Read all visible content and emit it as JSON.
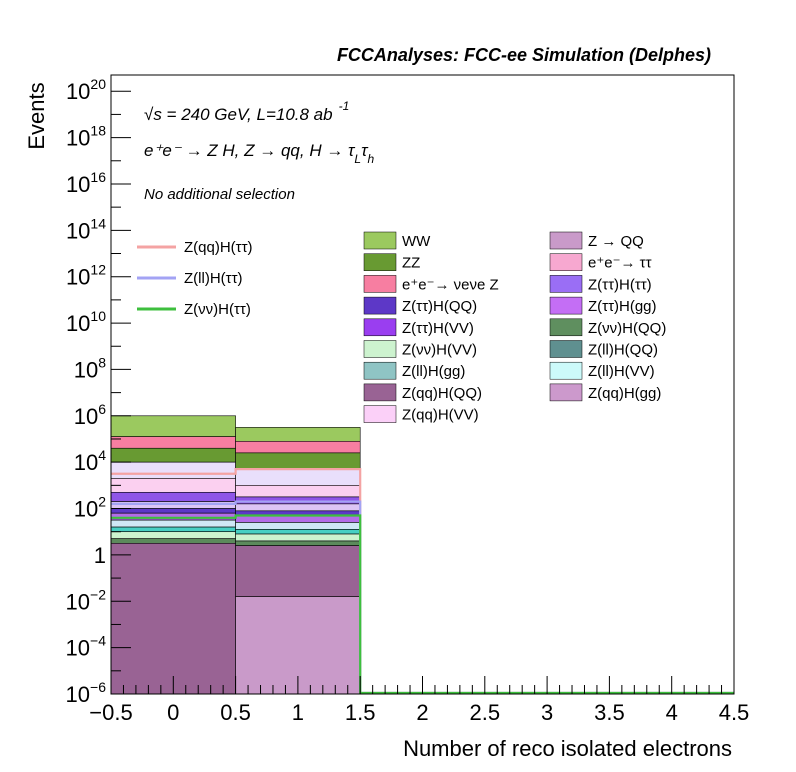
{
  "chart_data": {
    "type": "histogram-stacked",
    "header": "FCCAnalyses: FCC-ee Simulation (Delphes)",
    "xlabel": "Number of reco isolated electrons",
    "ylabel": "Events",
    "xlim": [
      -0.5,
      4.5
    ],
    "ylim_log10": [
      -6,
      20.7
    ],
    "log_y": true,
    "annotations": {
      "sqrt_s": "√s = 240 GeV, L=10.8 ab",
      "lumi_exp": "-1",
      "process_main": "e⁺e⁻ → Z H, Z → qq, H → τ",
      "process_sub1": "L",
      "process_mid": "τ",
      "process_sub2": "h",
      "selection": "No additional selection"
    },
    "x_ticks": [
      {
        "value": -0.5,
        "label": "−0.5"
      },
      {
        "value": 0,
        "label": "0"
      },
      {
        "value": 0.5,
        "label": "0.5"
      },
      {
        "value": 1,
        "label": "1"
      },
      {
        "value": 1.5,
        "label": "1.5"
      },
      {
        "value": 2,
        "label": "2"
      },
      {
        "value": 2.5,
        "label": "2.5"
      },
      {
        "value": 3,
        "label": "3"
      },
      {
        "value": 3.5,
        "label": "3.5"
      },
      {
        "value": 4,
        "label": "4"
      },
      {
        "value": 4.5,
        "label": "4.5"
      }
    ],
    "y_ticks": [
      {
        "exp": -6,
        "base": "10",
        "sup": "−6"
      },
      {
        "exp": -4,
        "base": "10",
        "sup": "−4"
      },
      {
        "exp": -2,
        "base": "10",
        "sup": "−2"
      },
      {
        "exp": 0,
        "base": "1",
        "sup": ""
      },
      {
        "exp": 2,
        "base": "10",
        "sup": "2"
      },
      {
        "exp": 4,
        "base": "10",
        "sup": "4"
      },
      {
        "exp": 6,
        "base": "10",
        "sup": "6"
      },
      {
        "exp": 8,
        "base": "10",
        "sup": "8"
      },
      {
        "exp": 10,
        "base": "10",
        "sup": "10"
      },
      {
        "exp": 12,
        "base": "10",
        "sup": "12"
      },
      {
        "exp": 14,
        "base": "10",
        "sup": "14"
      },
      {
        "exp": 16,
        "base": "10",
        "sup": "16"
      },
      {
        "exp": 18,
        "base": "10",
        "sup": "18"
      },
      {
        "exp": 20,
        "base": "10",
        "sup": "20"
      }
    ],
    "bins": [
      {
        "x0": -0.5,
        "x1": 0.5,
        "total_log10": 6.0,
        "bands": [
          {
            "from": 5.1,
            "to": 6.0,
            "color": "#9bc95f"
          },
          {
            "from": 4.6,
            "to": 5.1,
            "color": "#f77ea1"
          },
          {
            "from": 4.0,
            "to": 4.6,
            "color": "#689a32"
          },
          {
            "from": 3.3,
            "to": 4.0,
            "color": "#e9dffb"
          },
          {
            "from": 2.7,
            "to": 3.3,
            "color": "#fbd0f0"
          },
          {
            "from": 2.3,
            "to": 2.7,
            "color": "#8f55e8"
          },
          {
            "from": 2.0,
            "to": 2.3,
            "color": "#dcc5f5"
          },
          {
            "from": 1.8,
            "to": 2.0,
            "color": "#5d38c7"
          },
          {
            "from": 1.5,
            "to": 1.8,
            "color": "#b46de8"
          },
          {
            "from": 1.2,
            "to": 1.5,
            "color": "#cfe8f5"
          },
          {
            "from": 1.0,
            "to": 1.2,
            "color": "#47cfc3"
          },
          {
            "from": 0.7,
            "to": 1.0,
            "color": "#cdf3cf"
          },
          {
            "from": 0.5,
            "to": 0.7,
            "color": "#5c8a5c"
          },
          {
            "from": -6.0,
            "to": 0.5,
            "color": "#996394"
          }
        ]
      },
      {
        "x0": 0.5,
        "x1": 1.5,
        "total_log10": 5.5,
        "bands": [
          {
            "from": 4.9,
            "to": 5.5,
            "color": "#9bc95f"
          },
          {
            "from": 4.4,
            "to": 4.9,
            "color": "#f77ea1"
          },
          {
            "from": 3.7,
            "to": 4.4,
            "color": "#689a32"
          },
          {
            "from": 3.0,
            "to": 3.7,
            "color": "#e9dffb"
          },
          {
            "from": 2.5,
            "to": 3.0,
            "color": "#fbd0f0"
          },
          {
            "from": 2.2,
            "to": 2.5,
            "color": "#8f55e8"
          },
          {
            "from": 1.9,
            "to": 2.2,
            "color": "#dcc5f5"
          },
          {
            "from": 1.7,
            "to": 1.9,
            "color": "#5d38c7"
          },
          {
            "from": 1.4,
            "to": 1.7,
            "color": "#b46de8"
          },
          {
            "from": 1.1,
            "to": 1.4,
            "color": "#cfe8f5"
          },
          {
            "from": 0.9,
            "to": 1.1,
            "color": "#47cfc3"
          },
          {
            "from": 0.6,
            "to": 0.9,
            "color": "#cdf3cf"
          },
          {
            "from": 0.4,
            "to": 0.6,
            "color": "#5c8a5c"
          },
          {
            "from": -1.8,
            "to": 0.4,
            "color": "#996394"
          },
          {
            "from": -6.0,
            "to": -1.8,
            "color": "#c99ac9"
          }
        ]
      }
    ],
    "signal_lines": [
      {
        "name": "Z(qq)H(ττ)",
        "color": "#f4a3a3",
        "values_log10": [
          3.5,
          3.7
        ]
      },
      {
        "name": "Z(ll)H(ττ)",
        "color": "#a3a3f4",
        "values_log10": [
          2.2,
          2.3
        ]
      },
      {
        "name": "Z(νν)H(ττ)",
        "color": "#3dbf3d",
        "values_log10": [
          1.6,
          1.7
        ]
      }
    ],
    "legend_signal": [
      {
        "label": "Z(qq)H(ττ)",
        "color": "#f4a3a3"
      },
      {
        "label": "Z(ll)H(ττ)",
        "color": "#a3a3f4"
      },
      {
        "label": "Z(νν)H(ττ)",
        "color": "#3dbf3d"
      }
    ],
    "legend_bkg_col1": [
      {
        "label": "WW",
        "color": "#9bc95f"
      },
      {
        "label": "ZZ",
        "color": "#689a32"
      },
      {
        "label": "e⁺e⁻→ νeνe Z",
        "color": "#f77ea1"
      },
      {
        "label": "Z(ττ)H(QQ)",
        "color": "#5d38c7"
      },
      {
        "label": "Z(ττ)H(VV)",
        "color": "#9a3ef0"
      },
      {
        "label": "Z(νν)H(VV)",
        "color": "#cdf3cf"
      },
      {
        "label": "Z(ll)H(gg)",
        "color": "#8fc4c4"
      },
      {
        "label": "Z(qq)H(QQ)",
        "color": "#996394"
      },
      {
        "label": "Z(qq)H(VV)",
        "color": "#fbd0f8"
      }
    ],
    "legend_bkg_col2": [
      {
        "label": "Z → QQ",
        "color": "#c99ac9"
      },
      {
        "label": "e⁺e⁻→ ττ",
        "color": "#f7a8d0"
      },
      {
        "label": "Z(ττ)H(ττ)",
        "color": "#9a6ef5"
      },
      {
        "label": "Z(ττ)H(gg)",
        "color": "#c46ef5"
      },
      {
        "label": "Z(νν)H(QQ)",
        "color": "#5f8f5f"
      },
      {
        "label": "Z(ll)H(QQ)",
        "color": "#5f9090"
      },
      {
        "label": "Z(ll)H(VV)",
        "color": "#ccfafa"
      },
      {
        "label": "Z(qq)H(gg)",
        "color": "#cc99cc"
      }
    ]
  }
}
